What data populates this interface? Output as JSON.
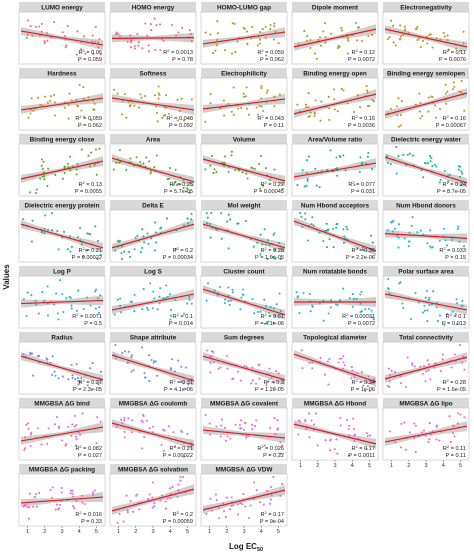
{
  "figure": {
    "xlabel": "Log EC",
    "xlabel_sub": "50",
    "ylabel": "Values"
  },
  "style": {
    "panel_bg": "#ffffff",
    "strip_bg": "#d9d9d9",
    "panel_border": "#bdbdbd",
    "fit_line": "#e31a1c",
    "ribbon": "#bfbfbf",
    "palette": [
      "#e9717a",
      "#b59a2e",
      "#5aab2e",
      "#21b592",
      "#2bb6d0",
      "#7c8ddf",
      "#e26fd2"
    ]
  },
  "chart_data": {
    "type": "scatter",
    "facet_grid": {
      "columns": 5,
      "rows": 10
    },
    "x_ticks": [
      "1",
      "2",
      "3",
      "4",
      "5"
    ],
    "xlim": [
      0.5,
      5.5
    ],
    "panels": [
      {
        "title": "LUMO energy",
        "r2": "0.06",
        "p": "0.059",
        "group": 0,
        "slope": -0.35
      },
      {
        "title": "HOMO energy",
        "r2": "0.0013",
        "p": "0.78",
        "group": 0,
        "slope": 0.02
      },
      {
        "title": "HOMO-LUMO gap",
        "r2": "0.059",
        "p": "0.062",
        "group": 1,
        "slope": 0.3
      },
      {
        "title": "Dipole moment",
        "r2": "0.12",
        "p": "0.0072",
        "group": 1,
        "slope": 0.45
      },
      {
        "title": "Electronegativity",
        "r2": "0.11",
        "p": "0.0076",
        "group": 1,
        "slope": -0.45
      },
      {
        "title": "Hardness",
        "r2": "0.059",
        "p": "0.062",
        "group": 1,
        "slope": 0.3
      },
      {
        "title": "Softness",
        "r2": "0.048",
        "p": "0.092",
        "group": 1,
        "slope": -0.3
      },
      {
        "title": "Electrophilicity",
        "r2": "0.043",
        "p": "0.11",
        "group": 1,
        "slope": 0.25
      },
      {
        "title": "Binding energy open",
        "r2": "0.16",
        "p": "0.0036",
        "group": 1,
        "slope": 0.5
      },
      {
        "title": "Binding energy semiopen",
        "r2": "0.16",
        "p": "0.00067",
        "group": 1,
        "slope": 0.55
      },
      {
        "title": "Binding energy close",
        "r2": "0.13",
        "p": "0.0055",
        "group": 2,
        "slope": 0.45
      },
      {
        "title": "Area",
        "r2": "0.25",
        "p": "5.7e-05",
        "group": 2,
        "slope": -0.6
      },
      {
        "title": "Volume",
        "r2": "0.22",
        "p": "0.00045",
        "group": 2,
        "slope": -0.55
      },
      {
        "title": "Area/Volume ratio",
        "r2": "0.077",
        "p": "0.031",
        "group": 3,
        "slope": 0.35
      },
      {
        "title": "Dielectric energy water",
        "r2": "0.24",
        "p": "8.7e-05",
        "group": 3,
        "slope": -0.65
      },
      {
        "title": "Dielectric energy protein",
        "r2": "0.21",
        "p": "0.00022",
        "group": 3,
        "slope": -0.6
      },
      {
        "title": "Delta E",
        "r2": "0.2",
        "p": "0.00034",
        "group": 3,
        "slope": 0.6
      },
      {
        "title": "Mol weight",
        "r2": "0.28",
        "p": "1.6e-05",
        "group": 3,
        "slope": -0.6
      },
      {
        "title": "Num Hbond acceptors",
        "r2": "0.36",
        "p": "2.2e-06",
        "group": 3,
        "slope": -0.75
      },
      {
        "title": "Num Hbond donors",
        "r2": "0.033",
        "p": "0.15",
        "group": 4,
        "slope": -0.12
      },
      {
        "title": "Log P",
        "r2": "0.0071",
        "p": "0.5",
        "group": 4,
        "slope": 0.08
      },
      {
        "title": "Log S",
        "r2": "0.1",
        "p": "0.014",
        "group": 4,
        "slope": 0.4
      },
      {
        "title": "Cluster count",
        "r2": "0.31",
        "p": "4.1e-06",
        "group": 4,
        "slope": -0.65
      },
      {
        "title": "Num rotatable bonds",
        "r2": "0.00031",
        "p": "0.0072",
        "group": 4,
        "slope": 0.0
      },
      {
        "title": "Polar surface area",
        "r2": "0.1",
        "p": "0.013",
        "group": 4,
        "slope": -0.4
      },
      {
        "title": "Radius",
        "r2": "0.27",
        "p": "2.3e-05",
        "group": 5,
        "slope": -0.6
      },
      {
        "title": "Shape attribute",
        "r2": "0.31",
        "p": "4.1e-06",
        "group": 5,
        "slope": -0.65
      },
      {
        "title": "Sum degrees",
        "r2": "0.3",
        "p": "1.2e-05",
        "group": 6,
        "slope": -0.6
      },
      {
        "title": "Topological diameter",
        "r2": "0.34",
        "p": "1e-06",
        "group": 6,
        "slope": -0.7
      },
      {
        "title": "Total connectivity",
        "r2": "0.28",
        "p": "1.6e-05",
        "group": 6,
        "slope": 0.55
      },
      {
        "title": "MMGBSA ΔG bind",
        "r2": "0.082",
        "p": "0.027",
        "group": 6,
        "slope": 0.35
      },
      {
        "title": "MMGBSA ΔG coulomb",
        "r2": "0.21",
        "p": "0.00022",
        "group": 6,
        "slope": -0.55
      },
      {
        "title": "MMGBSA ΔG covalent",
        "r2": "0.026",
        "p": "0.22",
        "group": 6,
        "slope": -0.2
      },
      {
        "title": "MMGBSA ΔG Hbond",
        "r2": "0.17",
        "p": "0.0011",
        "group": 6,
        "slope": -0.5
      },
      {
        "title": "MMGBSA ΔG lipo",
        "r2": "0.11",
        "p": "0.11",
        "group": 6,
        "slope": 0.4
      },
      {
        "title": "MMGBSA ΔG packing",
        "r2": "0.016",
        "p": "0.33",
        "group": 6,
        "slope": 0.15
      },
      {
        "title": "MMGBSA ΔG solvation",
        "r2": "0.2",
        "p": "0.00059",
        "group": 6,
        "slope": 0.55
      },
      {
        "title": "MMGBSA ΔG VDW",
        "r2": "0.17",
        "p": "9e-04",
        "group": 6,
        "slope": 0.5
      }
    ]
  }
}
